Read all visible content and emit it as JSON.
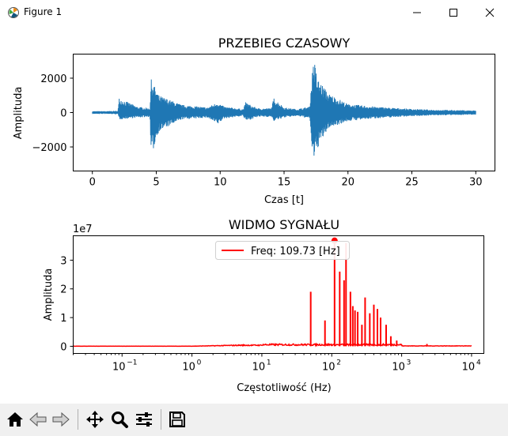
{
  "window": {
    "title": "Figure 1"
  },
  "toolbar": {
    "buttons": [
      "home-icon",
      "back-icon",
      "forward-icon",
      "pan-icon",
      "zoom-icon",
      "configure-subplots-icon",
      "save-icon"
    ]
  },
  "top_plot": {
    "title": "PRZEBIEG CZASOWY",
    "xlabel": "Czas [t]",
    "ylabel": "Amplituda",
    "xticks": [
      "0",
      "5",
      "10",
      "15",
      "20",
      "25",
      "30"
    ],
    "yticks": [
      "2000",
      "0",
      "−2000"
    ]
  },
  "bottom_plot": {
    "title": "WIDMO SYGNAŁU",
    "xlabel": "Częstotliwość (Hz)",
    "ylabel": "Amplituda",
    "offset_text": "1e7",
    "yticks": [
      "3",
      "2",
      "1",
      "0"
    ],
    "legend": "Freq: 109.73 [Hz]"
  },
  "colors": {
    "signal": "#1f77b4",
    "spectrum": "#ff0000"
  },
  "chart_data": [
    {
      "type": "line",
      "title": "PRZEBIEG CZASOWY",
      "xlabel": "Czas [t]",
      "ylabel": "Amplituda",
      "xlim": [
        -1.5,
        31.5
      ],
      "ylim": [
        -3400,
        3400
      ],
      "grid": false,
      "envelope": {
        "t": [
          0,
          1.0,
          2.0,
          2.1,
          3.5,
          4.5,
          4.6,
          5.2,
          7.0,
          9.0,
          9.8,
          10.3,
          11.8,
          12.0,
          12.6,
          13.0,
          14.0,
          14.2,
          15.0,
          16.0,
          17.0,
          17.3,
          17.6,
          18.5,
          20.0,
          22.0,
          24.0,
          26.0,
          28.0,
          30.0
        ],
        "upper": [
          80,
          80,
          100,
          850,
          350,
          250,
          1950,
          1000,
          450,
          300,
          600,
          350,
          200,
          600,
          350,
          250,
          250,
          850,
          300,
          200,
          350,
          3300,
          2000,
          1100,
          500,
          350,
          250,
          180,
          150,
          120
        ],
        "lower": [
          -80,
          -80,
          -100,
          -400,
          -300,
          -250,
          -2600,
          -1100,
          -400,
          -300,
          -700,
          -350,
          -200,
          -500,
          -350,
          -250,
          -250,
          -500,
          -300,
          -200,
          -350,
          -3100,
          -2100,
          -900,
          -500,
          -350,
          -250,
          -180,
          -150,
          -120
        ]
      }
    },
    {
      "type": "line",
      "title": "WIDMO SYGNAŁU",
      "xlabel": "Częstotliwość (Hz)",
      "ylabel": "Amplituda",
      "xscale": "log",
      "xlim": [
        0.02,
        15000
      ],
      "ylim": [
        -0.25,
        3.85
      ],
      "y_multiplier": "1e7",
      "legend": "Freq: 109.73 [Hz]",
      "legend_position": "upper center",
      "peak_marker": {
        "x": 109.73,
        "y": 3.68
      },
      "peaks": [
        {
          "x": 50,
          "y": 1.9
        },
        {
          "x": 80,
          "y": 0.9
        },
        {
          "x": 109.73,
          "y": 3.68
        },
        {
          "x": 130,
          "y": 2.6
        },
        {
          "x": 150,
          "y": 2.3
        },
        {
          "x": 160,
          "y": 3.6
        },
        {
          "x": 185,
          "y": 1.9
        },
        {
          "x": 200,
          "y": 1.4
        },
        {
          "x": 215,
          "y": 1.25
        },
        {
          "x": 235,
          "y": 1.2
        },
        {
          "x": 270,
          "y": 0.75
        },
        {
          "x": 300,
          "y": 1.7
        },
        {
          "x": 350,
          "y": 1.15
        },
        {
          "x": 400,
          "y": 1.45
        },
        {
          "x": 450,
          "y": 1.3
        },
        {
          "x": 500,
          "y": 1.0
        },
        {
          "x": 600,
          "y": 0.75
        },
        {
          "x": 700,
          "y": 0.35
        },
        {
          "x": 850,
          "y": 0.2
        },
        {
          "x": 2300,
          "y": 0.08
        }
      ]
    }
  ]
}
